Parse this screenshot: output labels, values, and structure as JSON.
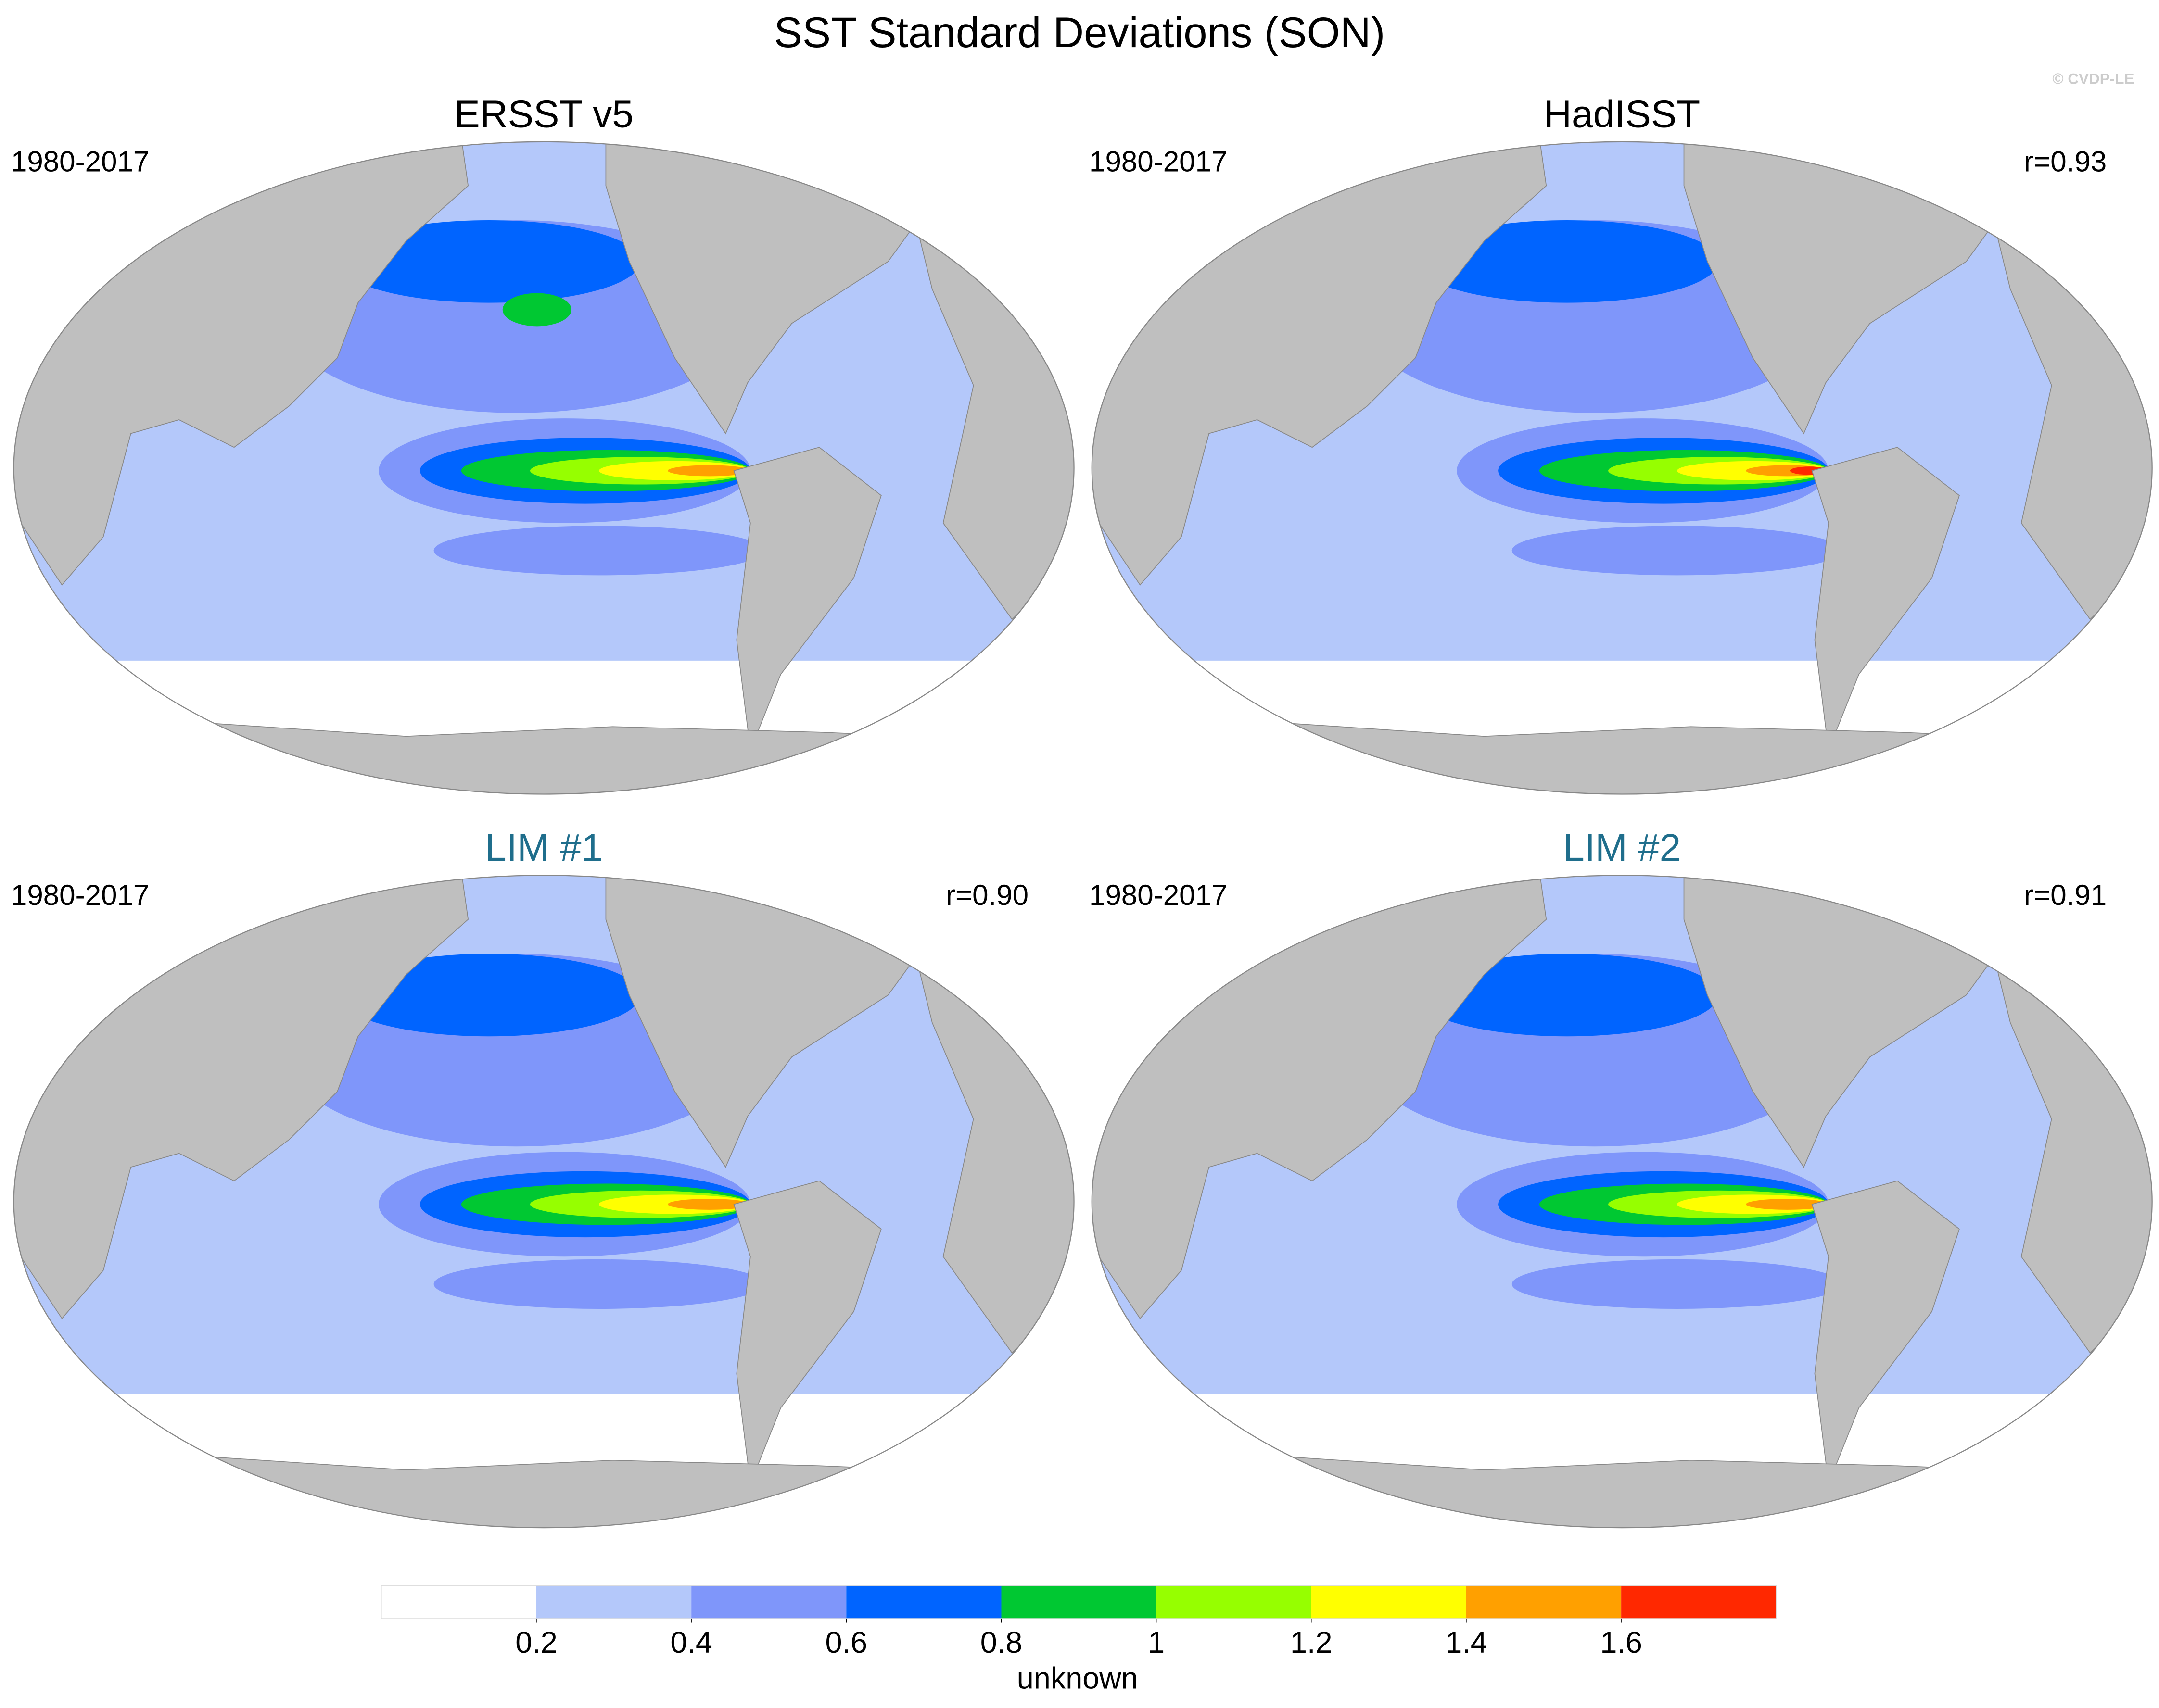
{
  "title": "SST Standard Deviations (SON)",
  "watermark": "© CVDP-LE",
  "panels": [
    {
      "title": "ERSST v5",
      "color": "#000000",
      "period": "1980-2017",
      "r": null
    },
    {
      "title": "HadISST",
      "color": "#000000",
      "period": "1980-2017",
      "r": "r=0.93"
    },
    {
      "title": "LIM #1",
      "color": "#1f6e8c",
      "period": "1980-2017",
      "r": "r=0.90"
    },
    {
      "title": "LIM #2",
      "color": "#1f6e8c",
      "period": "1980-2017",
      "r": "r=0.91"
    }
  ],
  "colorbar": {
    "levels": [
      0.2,
      0.4,
      0.6,
      0.8,
      1,
      1.2,
      1.4,
      1.6
    ],
    "colors": [
      "#ffffff",
      "#b4c8fa",
      "#7f96fa",
      "#0064ff",
      "#00c832",
      "#96ff00",
      "#ffff00",
      "#ffa000",
      "#ff2800"
    ],
    "label": "unknown"
  }
}
